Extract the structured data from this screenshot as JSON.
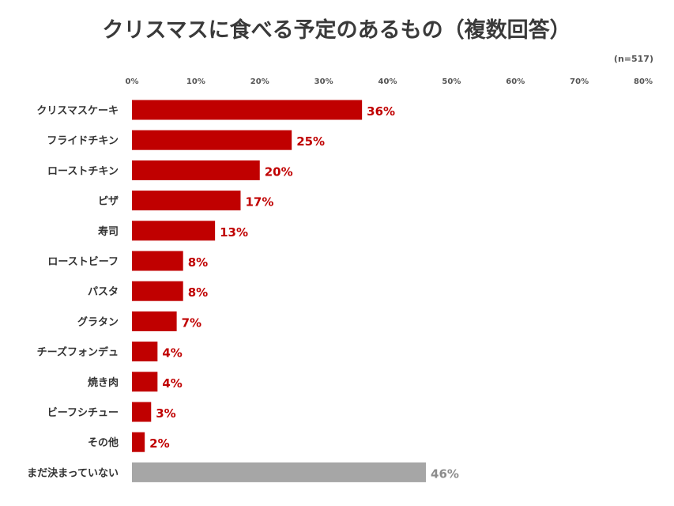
{
  "chart_data": {
    "type": "bar",
    "orientation": "horizontal",
    "title": "クリスマスに食べる予定のあるもの（複数回答）",
    "sample_size": "(n=517)",
    "xlim": [
      0,
      80
    ],
    "x_ticks": [
      "0%",
      "10%",
      "20%",
      "30%",
      "40%",
      "50%",
      "60%",
      "70%",
      "80%"
    ],
    "grid": false,
    "legend": "none",
    "categories": [
      "クリスマスケーキ",
      "フライドチキン",
      "ローストチキン",
      "ピザ",
      "寿司",
      "ローストビーフ",
      "パスタ",
      "グラタン",
      "チーズフォンデュ",
      "焼き肉",
      "ビーフシチュー",
      "その他",
      "まだ決まっていない"
    ],
    "values": [
      36,
      25,
      20,
      17,
      13,
      8,
      8,
      7,
      4,
      4,
      3,
      2,
      46
    ],
    "value_labels": [
      "36%",
      "25%",
      "20%",
      "17%",
      "13%",
      "8%",
      "8%",
      "7%",
      "4%",
      "4%",
      "3%",
      "2%",
      "46%"
    ],
    "bar_colors": [
      "#c00000",
      "#c00000",
      "#c00000",
      "#c00000",
      "#c00000",
      "#c00000",
      "#c00000",
      "#c00000",
      "#c00000",
      "#c00000",
      "#c00000",
      "#c00000",
      "#a6a6a6"
    ],
    "label_colors": [
      "#c00000",
      "#c00000",
      "#c00000",
      "#c00000",
      "#c00000",
      "#c00000",
      "#c00000",
      "#c00000",
      "#c00000",
      "#c00000",
      "#c00000",
      "#c00000",
      "#8c8c8c"
    ]
  }
}
